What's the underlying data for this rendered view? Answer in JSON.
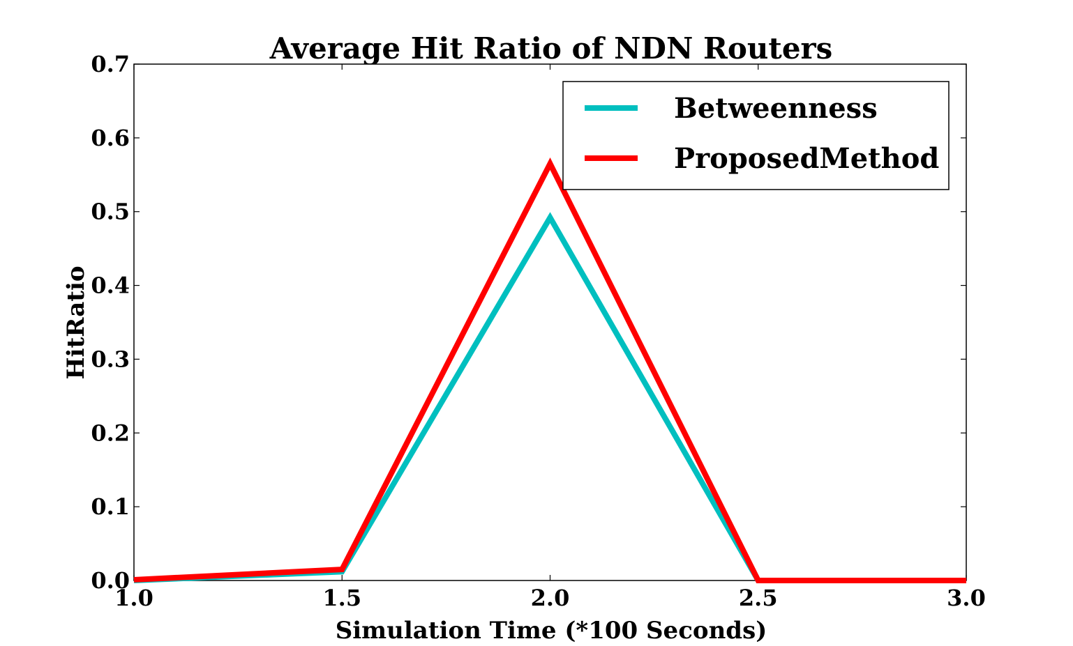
{
  "chart_data": {
    "type": "line",
    "title": "Average Hit Ratio of NDN Routers",
    "xlabel": "Simulation Time (*100 Seconds)",
    "ylabel": "HitRatio",
    "x": [
      1.0,
      1.5,
      2.0,
      2.5,
      3.0
    ],
    "xlim": [
      1.0,
      3.0
    ],
    "ylim": [
      0.0,
      0.7
    ],
    "xticks": [
      "1.0",
      "1.5",
      "2.0",
      "2.5",
      "3.0"
    ],
    "yticks": [
      "0.0",
      "0.1",
      "0.2",
      "0.3",
      "0.4",
      "0.5",
      "0.6",
      "0.7"
    ],
    "legend_position": "top-right",
    "grid": false,
    "series": [
      {
        "name": "Betweenness",
        "color": "#00bfbf",
        "values": [
          0.0,
          0.012,
          0.492,
          0.0,
          0.0
        ]
      },
      {
        "name": "ProposedMethod",
        "color": "#ff0000",
        "values": [
          0.001,
          0.015,
          0.565,
          0.0,
          0.0
        ]
      }
    ]
  }
}
